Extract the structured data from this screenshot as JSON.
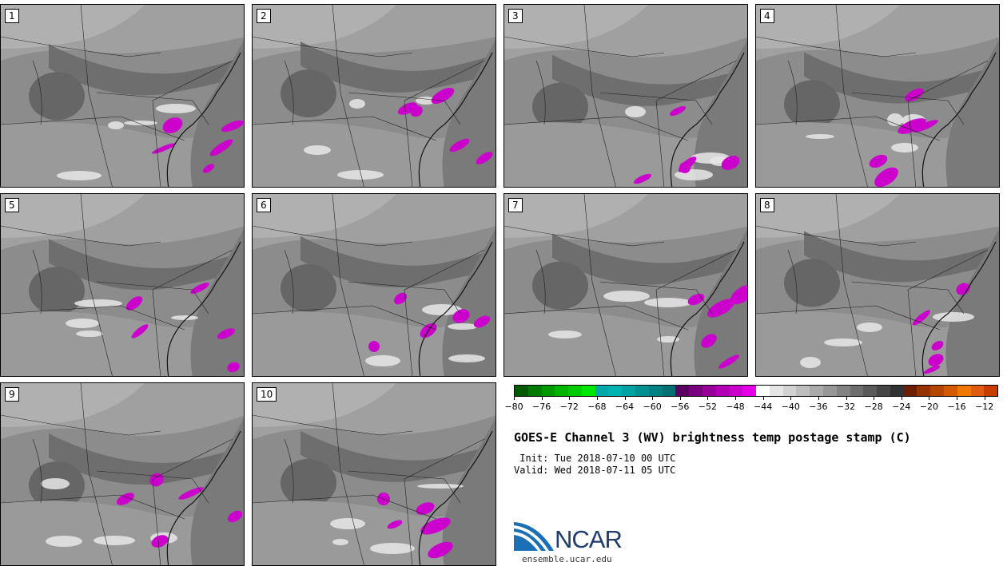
{
  "stamps": [
    {
      "label": "1"
    },
    {
      "label": "2"
    },
    {
      "label": "3"
    },
    {
      "label": "4"
    },
    {
      "label": "5"
    },
    {
      "label": "6"
    },
    {
      "label": "7"
    },
    {
      "label": "8"
    },
    {
      "label": "9"
    },
    {
      "label": "10"
    }
  ],
  "colorbar": {
    "ticks": [
      "−80",
      "−76",
      "−72",
      "−68",
      "−64",
      "−60",
      "−56",
      "−52",
      "−48",
      "−44",
      "−40",
      "−36",
      "−32",
      "−28",
      "−24",
      "−20",
      "−16",
      "−12"
    ],
    "colors": [
      "#005a00",
      "#007a00",
      "#009a00",
      "#00b400",
      "#00cc00",
      "#00e800",
      "#00a8a8",
      "#00b4b4",
      "#00a2a2",
      "#009090",
      "#008080",
      "#007070",
      "#5a0060",
      "#780080",
      "#960096",
      "#b400b4",
      "#cc00cc",
      "#e600e6",
      "#ffffff",
      "#e6e6e6",
      "#d2d2d2",
      "#bebebe",
      "#aaaaaa",
      "#969696",
      "#828282",
      "#6e6e6e",
      "#5a5a5a",
      "#464646",
      "#323232",
      "#6e1e00",
      "#963200",
      "#b44600",
      "#d25a00",
      "#f07800",
      "#e05a10",
      "#c83c00"
    ],
    "min": -80,
    "max": -10
  },
  "title": "GOES-E Channel 3 (WV) brightness temp postage stamp (C)",
  "init_text": " Init: Tue 2018-07-10 00 UTC",
  "valid_text": "Valid: Wed 2018-07-11 05 UTC",
  "logo": {
    "name": "NCAR",
    "url": "ensemble.ucar.edu",
    "blue": "#1a6fb5",
    "navy": "#1f3d6e"
  },
  "palette": {
    "moist": "#cc00cc",
    "background_gray": "#8c8c8c"
  }
}
